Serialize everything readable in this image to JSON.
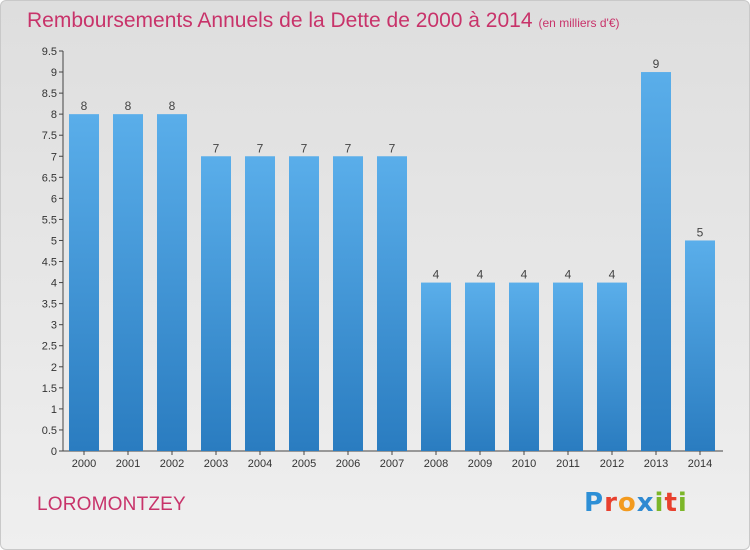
{
  "header": {
    "title": "Remboursements Annuels de la Dette de 2000 à 2014",
    "subtitle": "(en milliers d'€)"
  },
  "commune_name": "LOROMONTZEY",
  "logo": {
    "text": "Proxiti",
    "letters": [
      {
        "ch": "P",
        "color": "#2d8fd6"
      },
      {
        "ch": "r",
        "color": "#e8402e"
      },
      {
        "ch": "o",
        "color": "#f39a1e"
      },
      {
        "ch": "x",
        "color": "#2f8ad2"
      },
      {
        "ch": "i",
        "color": "#7cb628"
      },
      {
        "ch": "t",
        "color": "#e8402e"
      },
      {
        "ch": "i",
        "color": "#7cb628"
      }
    ]
  },
  "chart_data": {
    "type": "bar",
    "categories": [
      "2000",
      "2001",
      "2002",
      "2003",
      "2004",
      "2005",
      "2006",
      "2007",
      "2008",
      "2009",
      "2010",
      "2011",
      "2012",
      "2013",
      "2014"
    ],
    "values": [
      8,
      8,
      8,
      7,
      7,
      7,
      7,
      7,
      4,
      4,
      4,
      4,
      4,
      9,
      5
    ],
    "data_labels": [
      "8",
      "8",
      "8",
      "7",
      "7",
      "7",
      "7",
      "7",
      "4",
      "4",
      "4",
      "4",
      "4",
      "9",
      "5"
    ],
    "yticks": [
      "0",
      "0.5",
      "1",
      "1.5",
      "2",
      "2.5",
      "3",
      "3.5",
      "4",
      "4.5",
      "5",
      "5.5",
      "6",
      "6.5",
      "7",
      "7.5",
      "8",
      "8.5",
      "9",
      "9.5"
    ],
    "ylim": [
      0,
      9.5
    ],
    "grid": false,
    "bar_color_top": "#5aaeea",
    "bar_color_bottom": "#2a7cc0",
    "title": "Remboursements Annuels de la Dette de 2000 à 2014",
    "xlabel": "",
    "ylabel": ""
  }
}
